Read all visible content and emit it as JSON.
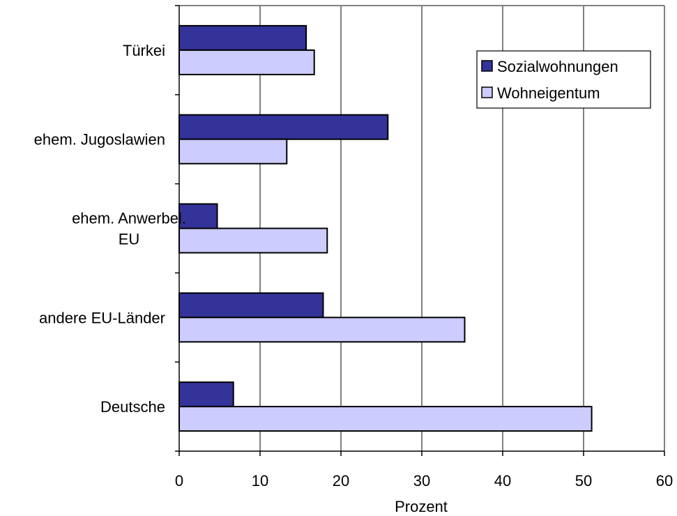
{
  "colors": {
    "sozial": "#333399",
    "eigentum": "#ccccff",
    "axis": "#000000",
    "grid": "#000000",
    "frame": "#808080"
  },
  "chart_data": {
    "type": "bar",
    "orientation": "horizontal",
    "categories": [
      [
        "Türkei"
      ],
      [
        "ehem. Jugoslawien"
      ],
      [
        "ehem. Anwerbel.",
        "EU"
      ],
      [
        "andere EU-Länder"
      ],
      [
        "Deutsche"
      ]
    ],
    "series": [
      {
        "name": "Sozialwohnungen",
        "color": "#333399",
        "values": [
          15.7,
          25.8,
          4.7,
          17.8,
          6.7
        ]
      },
      {
        "name": "Wohneigentum",
        "color": "#ccccff",
        "values": [
          16.7,
          13.3,
          18.3,
          35.3,
          51.0
        ]
      }
    ],
    "xlabel": "Prozent",
    "ylabel": "",
    "xlim": [
      0,
      60
    ],
    "xticks": [
      0,
      10,
      20,
      30,
      40,
      50,
      60
    ],
    "grid": true,
    "legend": "top-right"
  }
}
